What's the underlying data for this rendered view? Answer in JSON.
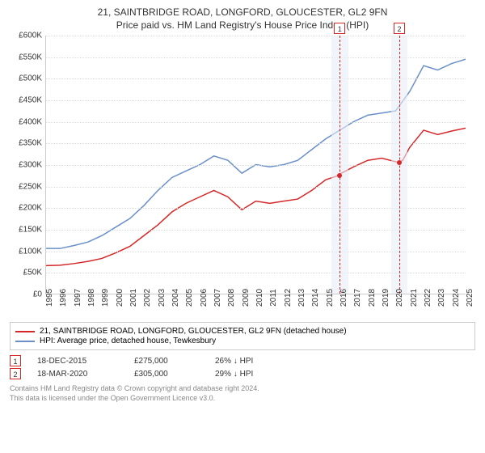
{
  "chart": {
    "title": "21, SAINTBRIDGE ROAD, LONGFORD, GLOUCESTER, GL2 9FN",
    "subtitle": "Price paid vs. HM Land Registry's House Price Index (HPI)",
    "type": "line",
    "background_color": "#ffffff",
    "grid_color": "#dddddd",
    "axis_color": "#cccccc",
    "label_fontsize": 10,
    "title_fontsize": 12,
    "ylim": [
      0,
      600000
    ],
    "ytick_step": 50000,
    "yticks": [
      "£0",
      "£50K",
      "£100K",
      "£150K",
      "£200K",
      "£250K",
      "£300K",
      "£350K",
      "£400K",
      "£450K",
      "£500K",
      "£550K",
      "£600K"
    ],
    "xrange": [
      1995,
      2025
    ],
    "xticks": [
      "1995",
      "1996",
      "1997",
      "1998",
      "1999",
      "2000",
      "2001",
      "2002",
      "2003",
      "2004",
      "2005",
      "2006",
      "2007",
      "2008",
      "2009",
      "2010",
      "2011",
      "2012",
      "2013",
      "2014",
      "2015",
      "2016",
      "2017",
      "2018",
      "2019",
      "2020",
      "2021",
      "2022",
      "2023",
      "2024",
      "2025"
    ],
    "series": [
      {
        "name": "property_price",
        "label": "21, SAINTBRIDGE ROAD, LONGFORD, GLOUCESTER, GL2 9FN (detached house)",
        "color": "#d62728",
        "line_width": 1.5,
        "data": [
          [
            1995,
            65000
          ],
          [
            1996,
            66000
          ],
          [
            1997,
            70000
          ],
          [
            1998,
            75000
          ],
          [
            1999,
            82000
          ],
          [
            2000,
            95000
          ],
          [
            2001,
            110000
          ],
          [
            2002,
            135000
          ],
          [
            2003,
            160000
          ],
          [
            2004,
            190000
          ],
          [
            2005,
            210000
          ],
          [
            2006,
            225000
          ],
          [
            2007,
            240000
          ],
          [
            2008,
            225000
          ],
          [
            2009,
            195000
          ],
          [
            2010,
            215000
          ],
          [
            2011,
            210000
          ],
          [
            2012,
            215000
          ],
          [
            2013,
            220000
          ],
          [
            2014,
            240000
          ],
          [
            2015,
            265000
          ],
          [
            2015.96,
            275000
          ],
          [
            2016,
            278000
          ],
          [
            2017,
            295000
          ],
          [
            2018,
            310000
          ],
          [
            2019,
            315000
          ],
          [
            2020.21,
            305000
          ],
          [
            2020.5,
            310000
          ],
          [
            2021,
            340000
          ],
          [
            2022,
            380000
          ],
          [
            2023,
            370000
          ],
          [
            2024,
            378000
          ],
          [
            2025,
            385000
          ]
        ]
      },
      {
        "name": "hpi",
        "label": "HPI: Average price, detached house, Tewkesbury",
        "color": "#6b8fc9",
        "line_width": 1.5,
        "data": [
          [
            1995,
            105000
          ],
          [
            1996,
            105000
          ],
          [
            1997,
            112000
          ],
          [
            1998,
            120000
          ],
          [
            1999,
            135000
          ],
          [
            2000,
            155000
          ],
          [
            2001,
            175000
          ],
          [
            2002,
            205000
          ],
          [
            2003,
            240000
          ],
          [
            2004,
            270000
          ],
          [
            2005,
            285000
          ],
          [
            2006,
            300000
          ],
          [
            2007,
            320000
          ],
          [
            2008,
            310000
          ],
          [
            2009,
            280000
          ],
          [
            2010,
            300000
          ],
          [
            2011,
            295000
          ],
          [
            2012,
            300000
          ],
          [
            2013,
            310000
          ],
          [
            2014,
            335000
          ],
          [
            2015,
            360000
          ],
          [
            2016,
            380000
          ],
          [
            2017,
            400000
          ],
          [
            2018,
            415000
          ],
          [
            2019,
            420000
          ],
          [
            2020,
            425000
          ],
          [
            2021,
            470000
          ],
          [
            2022,
            530000
          ],
          [
            2023,
            520000
          ],
          [
            2024,
            535000
          ],
          [
            2025,
            545000
          ]
        ]
      }
    ],
    "markers": [
      {
        "id": "1",
        "x": 2015.96,
        "color": "#d62728",
        "band_width_years": 1.2
      },
      {
        "id": "2",
        "x": 2020.21,
        "color": "#d62728",
        "band_width_years": 1.2
      }
    ],
    "sale_points": [
      {
        "x": 2015.96,
        "y": 275000,
        "color": "#d62728"
      },
      {
        "x": 2020.21,
        "y": 305000,
        "color": "#d62728"
      }
    ]
  },
  "legend": {
    "items": [
      {
        "color": "#d62728",
        "label": "21, SAINTBRIDGE ROAD, LONGFORD, GLOUCESTER, GL2 9FN (detached house)"
      },
      {
        "color": "#6b8fc9",
        "label": "HPI: Average price, detached house, Tewkesbury"
      }
    ]
  },
  "sales": [
    {
      "marker_id": "1",
      "marker_color": "#d62728",
      "date": "18-DEC-2015",
      "price": "£275,000",
      "pct": "26% ↓ HPI"
    },
    {
      "marker_id": "2",
      "marker_color": "#d62728",
      "date": "18-MAR-2020",
      "price": "£305,000",
      "pct": "29% ↓ HPI"
    }
  ],
  "footer": {
    "line1": "Contains HM Land Registry data © Crown copyright and database right 2024.",
    "line2": "This data is licensed under the Open Government Licence v3.0."
  }
}
